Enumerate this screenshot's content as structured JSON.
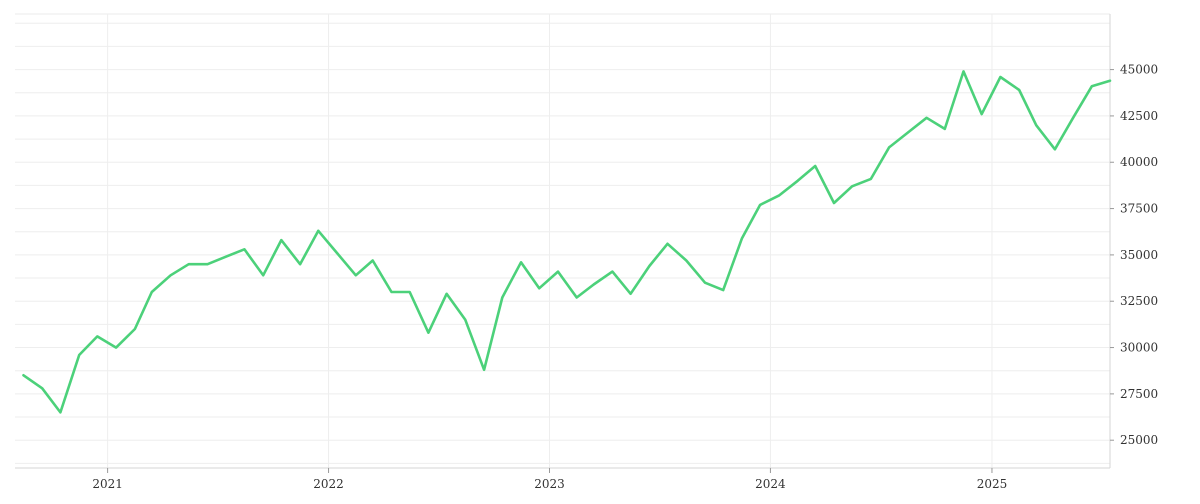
{
  "chart_data": {
    "type": "line",
    "title": "",
    "xlabel": "",
    "ylabel": "",
    "y_axis_side": "right",
    "grid": true,
    "xlim": [
      "2020-08-01",
      "2025-07-15"
    ],
    "ylim": [
      23500,
      48000
    ],
    "x_ticks": [
      {
        "date": "2021-01-01",
        "label": "2021"
      },
      {
        "date": "2022-01-01",
        "label": "2022"
      },
      {
        "date": "2023-01-01",
        "label": "2023"
      },
      {
        "date": "2024-01-01",
        "label": "2024"
      },
      {
        "date": "2025-01-01",
        "label": "2025"
      }
    ],
    "y_ticks": [
      25000,
      27500,
      30000,
      32500,
      35000,
      37500,
      40000,
      42500,
      45000
    ],
    "y_tick_labels": [
      "25000",
      "27500",
      "30000",
      "32500",
      "35000",
      "37500",
      "40000",
      "42500",
      "45000"
    ],
    "series": [
      {
        "color": "#4cd17a",
        "x": [
          "2020-08",
          "2020-09",
          "2020-10",
          "2020-11",
          "2020-12",
          "2021-01",
          "2021-02",
          "2021-03",
          "2021-04",
          "2021-05",
          "2021-06",
          "2021-07",
          "2021-08",
          "2021-09",
          "2021-10",
          "2021-11",
          "2021-12",
          "2022-01",
          "2022-02",
          "2022-03",
          "2022-04",
          "2022-05",
          "2022-06",
          "2022-07",
          "2022-08",
          "2022-09",
          "2022-10",
          "2022-11",
          "2022-12",
          "2023-01",
          "2023-02",
          "2023-03",
          "2023-04",
          "2023-05",
          "2023-06",
          "2023-07",
          "2023-08",
          "2023-09",
          "2023-10",
          "2023-11",
          "2023-12",
          "2024-01",
          "2024-02",
          "2024-03",
          "2024-04",
          "2024-05",
          "2024-06",
          "2024-07",
          "2024-08",
          "2024-09",
          "2024-10",
          "2024-11",
          "2024-12",
          "2025-01",
          "2025-02",
          "2025-03",
          "2025-04",
          "2025-05",
          "2025-06",
          "2025-07"
        ],
        "values": [
          28500,
          27800,
          26500,
          29600,
          30600,
          30000,
          31000,
          33000,
          33900,
          34500,
          34500,
          34900,
          35300,
          33900,
          35800,
          34500,
          36300,
          35100,
          33900,
          34700,
          33000,
          33000,
          30800,
          32900,
          31500,
          28800,
          32700,
          34600,
          33200,
          34100,
          32700,
          33400,
          34100,
          32900,
          34400,
          35600,
          34700,
          33500,
          33100,
          35900,
          37700,
          38200,
          39000,
          39800,
          37800,
          38700,
          39100,
          40800,
          41600,
          42400,
          41800,
          44900,
          42600,
          44600,
          43900,
          42000,
          40700,
          42400,
          44100,
          44400
        ]
      }
    ]
  }
}
